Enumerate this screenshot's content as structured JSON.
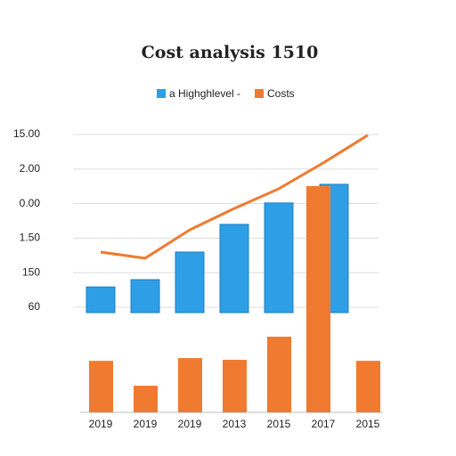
{
  "chart_data": {
    "type": "bar",
    "title": "Cost analysis 1510",
    "y_labels": [
      "15.00",
      "2.00",
      "0.00",
      "1.50",
      "150",
      "60"
    ],
    "categories": [
      "2019",
      "2019",
      "2019",
      "2013",
      "2015",
      "2017",
      "2015"
    ],
    "ylim": [
      0,
      8.5
    ],
    "grid": true,
    "series": [
      {
        "name": "a Highghlevel -",
        "color": "#2e9fe6",
        "kind": "bar-raised",
        "values": [
          3.63,
          3.84,
          4.64,
          5.44,
          6.06,
          6.6,
          null
        ]
      },
      {
        "name": "Costs",
        "color": "#f07a2f",
        "kind": "bar",
        "values": [
          1.49,
          0.77,
          1.57,
          1.52,
          2.19,
          6.55,
          1.49
        ]
      },
      {
        "name": "Costs",
        "color": "#f07a2f",
        "kind": "line",
        "values": [
          4.64,
          4.46,
          5.28,
          5.9,
          6.47,
          7.22,
          8.02
        ]
      }
    ]
  }
}
